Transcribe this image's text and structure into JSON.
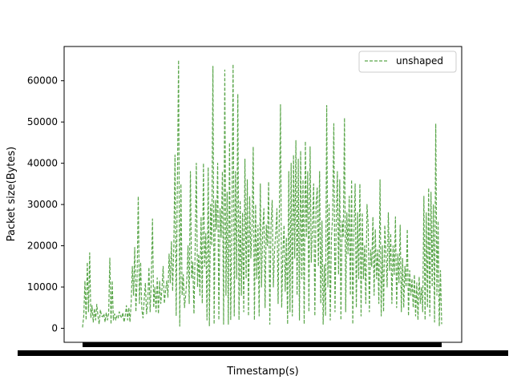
{
  "chart_data": {
    "type": "line",
    "title": "",
    "xlabel": "Timestamp(s)",
    "ylabel": "Packet size(Bytes)",
    "ylim": [
      -3400,
      68300
    ],
    "yticks": [
      0,
      10000,
      20000,
      30000,
      40000,
      50000,
      60000
    ],
    "ytick_labels": [
      "0",
      "10000",
      "20000",
      "30000",
      "40000",
      "50000",
      "60000"
    ],
    "x_tick_labels_note": "",
    "grid": false,
    "legend_position": "top-right",
    "series": [
      {
        "name": "unshaped",
        "color": "#5aa64a",
        "linestyle": "dashed",
        "values": [
          200,
          3000,
          11500,
          2000,
          16000,
          4000,
          18300,
          2500,
          5500,
          1500,
          4800,
          2000,
          5800,
          3000,
          1000,
          4500,
          3000,
          2800,
          3500,
          1500,
          3800,
          2000,
          3500,
          17000,
          1000,
          11500,
          2000,
          3500,
          2000,
          3000,
          2500,
          4000,
          3000,
          2500,
          3800,
          1500,
          3000,
          5500,
          2000,
          5000,
          1500,
          6000,
          15000,
          8000,
          19600,
          4000,
          12000,
          32000,
          6000,
          16000,
          4500,
          2500,
          7000,
          11000,
          3500,
          6000,
          14800,
          4000,
          11500,
          26500,
          5000,
          10000,
          4000,
          12200,
          3500,
          11500,
          6000,
          9500,
          15000,
          6000,
          9000,
          11500,
          7500,
          18000,
          11000,
          21000,
          9000,
          20000,
          42000,
          3000,
          35000,
          65000,
          500,
          35000,
          8000,
          13000,
          5000,
          8000,
          12000,
          20000,
          6000,
          38000,
          12000,
          16000,
          3500,
          19000,
          40000,
          10000,
          18000,
          8000,
          27000,
          6000,
          40000,
          15000,
          23000,
          2000,
          39000,
          500,
          30000,
          20000,
          63500,
          1000,
          31000,
          24000,
          40000,
          2000,
          29000,
          22000,
          38000,
          1000,
          62600,
          8000,
          33000,
          1000,
          45000,
          2000,
          25000,
          64000,
          3000,
          38000,
          12000,
          56800,
          2000,
          31000,
          8000,
          28000,
          4000,
          41000,
          12000,
          36000,
          3000,
          32000,
          17000,
          24000,
          44000,
          2000,
          30000,
          12000,
          25000,
          3000,
          35000,
          10000,
          24000,
          29000,
          5000,
          25000,
          20000,
          35500,
          1000,
          25000,
          31000,
          10000,
          19000,
          23000,
          29000,
          6000,
          27000,
          54200,
          5000,
          18000,
          25000,
          9000,
          22000,
          1000,
          38000,
          4000,
          40000,
          3000,
          42000,
          17000,
          45500,
          8000,
          41000,
          2000,
          43000,
          12000,
          36000,
          1000,
          45300,
          22000,
          38000,
          4000,
          44000,
          16000,
          25000,
          35000,
          3000,
          30000,
          34000,
          15000,
          38000,
          6000,
          26000,
          1000,
          15500,
          3000,
          54000,
          10000,
          30000,
          2000,
          22000,
          27000,
          49600,
          4000,
          25000,
          38000,
          13000,
          36000,
          2000,
          26000,
          22000,
          51000,
          4000,
          28000,
          18000,
          32000,
          8000,
          36000,
          1000,
          24000,
          35000,
          5000,
          28000,
          12000,
          35000,
          3000,
          28000,
          12000,
          20000,
          6000,
          30000,
          25000,
          4000,
          19000,
          15000,
          27000,
          8000,
          24000,
          12000,
          19000,
          6000,
          36000,
          3000,
          20000,
          4000,
          25000,
          18000,
          10000,
          28000,
          14000,
          23000,
          6000,
          20000,
          13000,
          27000,
          5000,
          18000,
          11000,
          25000,
          4000,
          17000,
          5000,
          15000,
          10000,
          24000,
          3000,
          14000,
          8000,
          12000,
          5000,
          13000,
          3000,
          11000,
          2000,
          12500,
          6000,
          10000,
          4000,
          32000,
          2000,
          28000,
          5000,
          34000,
          3000,
          33000,
          10000,
          30000,
          1500,
          49600,
          8000,
          26000,
          500,
          14000,
          1000
        ]
      }
    ]
  }
}
